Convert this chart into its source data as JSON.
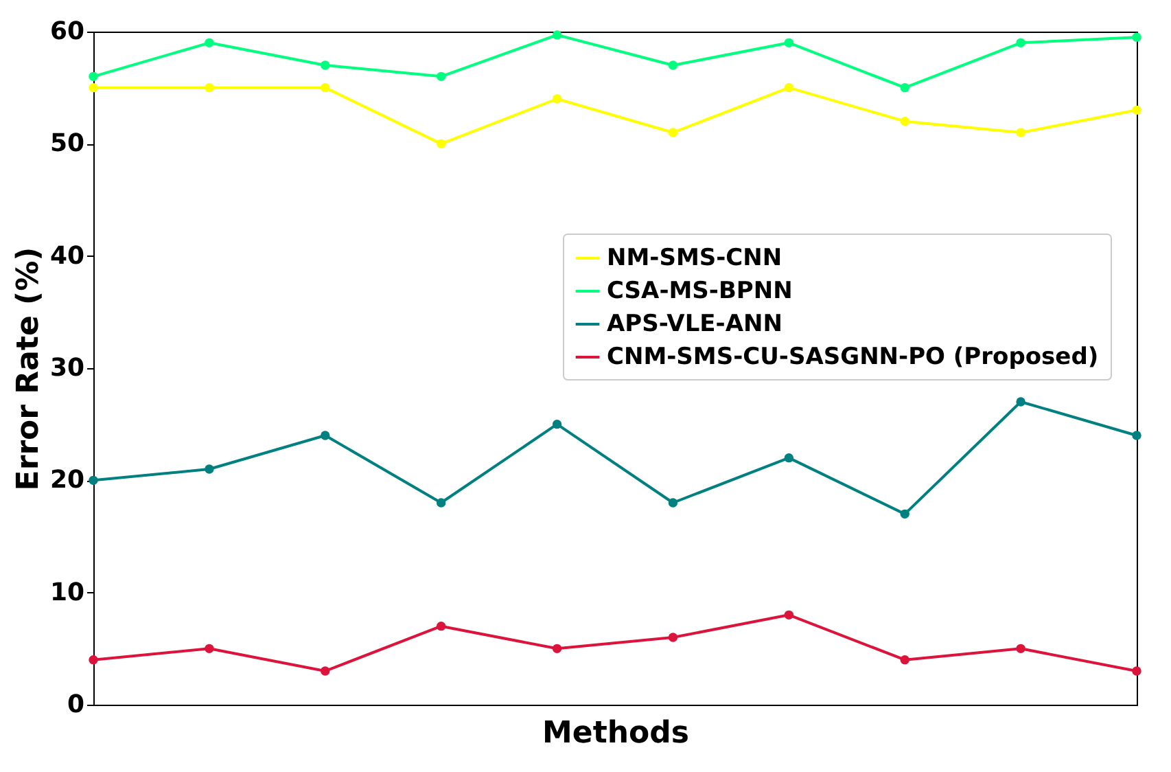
{
  "chart_data": {
    "type": "line",
    "xlabel": "Methods",
    "ylabel": "Error Rate (%)",
    "categories": [
      null,
      null,
      null,
      null,
      null,
      null,
      null,
      null,
      null,
      null
    ],
    "series": [
      {
        "name": "NM-SMS-CNN",
        "color": "#ffff00",
        "values": [
          55,
          55,
          55,
          50,
          54,
          51,
          55,
          52,
          51,
          53
        ]
      },
      {
        "name": "CSA-MS-BPNN",
        "color": "#00ff7f",
        "values": [
          56,
          59,
          57,
          56,
          59.7,
          57,
          59,
          55,
          59,
          59.5
        ]
      },
      {
        "name": "APS-VLE-ANN",
        "color": "#008080",
        "values": [
          20,
          21,
          24,
          18,
          25,
          18,
          22,
          17,
          27,
          24
        ]
      },
      {
        "name": "CNM-SMS-CU-SASGNN-PO (Proposed)",
        "color": "#dc143c",
        "values": [
          4,
          5,
          3,
          7,
          5,
          6,
          8,
          4,
          5,
          3
        ]
      }
    ],
    "ylim": [
      0,
      60
    ],
    "yticks": [
      0,
      10,
      20,
      30,
      40,
      50,
      60
    ],
    "legend": "right",
    "marker": "circle",
    "line_style": "solid",
    "tick_labels": "y",
    "grid": false
  }
}
